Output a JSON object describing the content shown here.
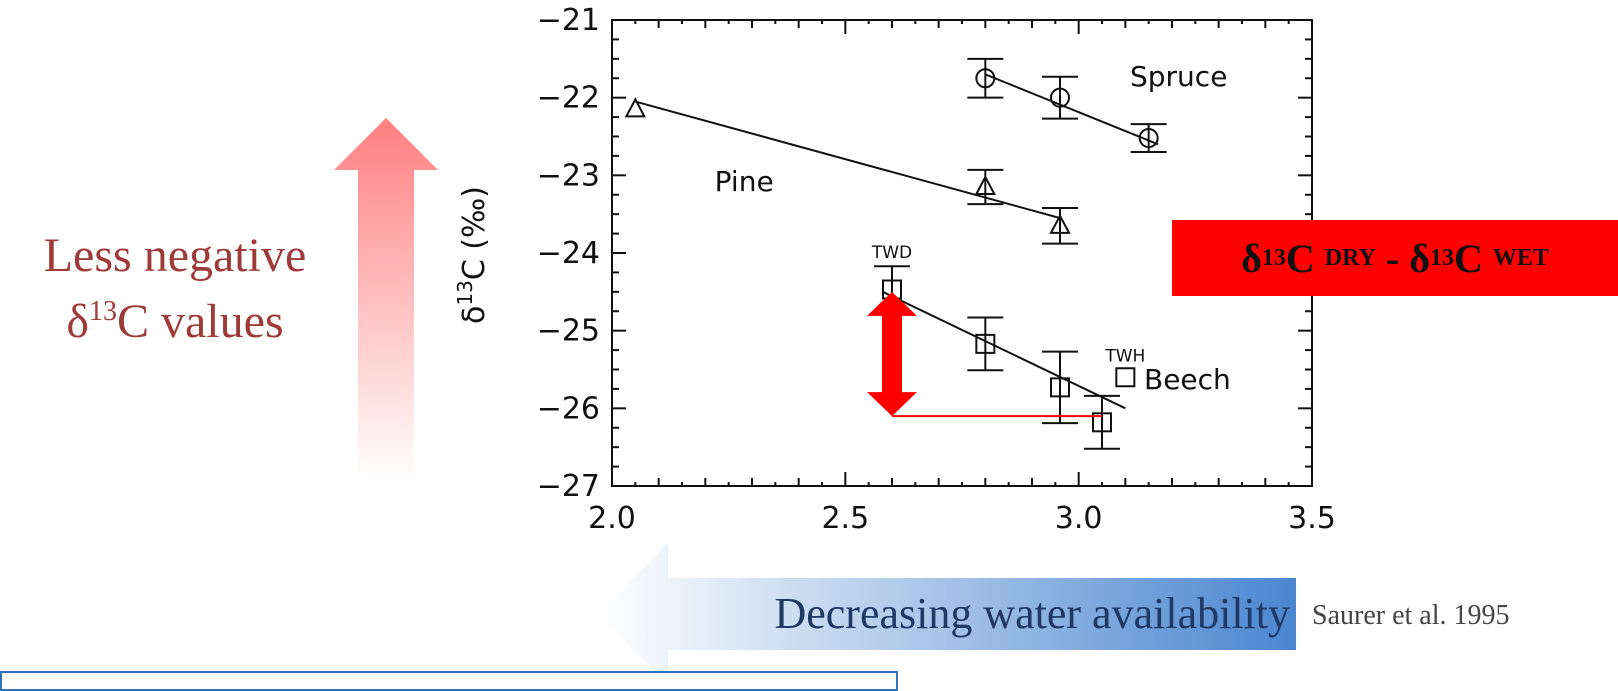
{
  "left_annotation": {
    "line1": "Less negative",
    "line2_symbol": "δ",
    "line2_sup": "13",
    "line2_rest": "C values"
  },
  "delta_box": {
    "sym1": "δ",
    "sup1": "13",
    "c1": "C",
    "sub1": "DRY",
    "minus": "-",
    "sym2": "δ",
    "sup2": "13",
    "c2": "C",
    "sub2": "WET"
  },
  "bottom_annotation": "Decreasing water availability",
  "citation": "Saurer et al. 1995",
  "colors": {
    "up_arrow": "#ff7f7f",
    "left_arrow": "#4a86d0",
    "red_marker": "#ff0000",
    "box_border": "#2e75b6"
  },
  "chart_data": {
    "type": "scatter",
    "ylabel": {
      "symbol": "δ",
      "sup": "13",
      "rest": "C  (‰)"
    },
    "xlim": [
      2.0,
      3.5
    ],
    "ylim": [
      -27,
      -21
    ],
    "x_ticks": [
      "2.0",
      "2.5",
      "3.0",
      "3.5"
    ],
    "y_ticks": [
      "−21",
      "−22",
      "−23",
      "−24",
      "−25",
      "−26",
      "−27"
    ],
    "series": [
      {
        "name": "Spruce",
        "marker": "circle",
        "points": [
          {
            "x": 2.8,
            "y": -21.75,
            "err": 0.25
          },
          {
            "x": 2.96,
            "y": -22.0,
            "err": 0.27
          },
          {
            "x": 3.15,
            "y": -22.52,
            "err": 0.18
          }
        ],
        "fit": [
          [
            2.8,
            -21.7
          ],
          [
            3.17,
            -22.6
          ]
        ],
        "label_pos": [
          3.11,
          -21.85
        ]
      },
      {
        "name": "Pine",
        "marker": "triangle",
        "points": [
          {
            "x": 2.05,
            "y": -22.15,
            "err": 0
          },
          {
            "x": 2.8,
            "y": -23.15,
            "err": 0.22
          },
          {
            "x": 2.96,
            "y": -23.65,
            "err": 0.23
          }
        ],
        "fit": [
          [
            2.05,
            -22.05
          ],
          [
            2.96,
            -23.55
          ]
        ],
        "label_pos": [
          2.22,
          -23.2
        ]
      },
      {
        "name": "Beech",
        "marker": "square",
        "points": [
          {
            "x": 2.6,
            "y": -24.47,
            "err": 0.3,
            "tag": "TWD"
          },
          {
            "x": 2.8,
            "y": -25.17,
            "err": 0.34
          },
          {
            "x": 2.96,
            "y": -25.73,
            "err": 0.46
          },
          {
            "x": 3.05,
            "y": -26.18,
            "err": 0.34
          },
          {
            "x": 3.1,
            "y": -25.6,
            "err": 0,
            "tag": "TWH"
          }
        ],
        "fit": [
          [
            2.58,
            -24.5
          ],
          [
            3.1,
            -26.0
          ]
        ],
        "label_pos": [
          3.14,
          -25.75
        ]
      }
    ],
    "difference_marker": {
      "x": 2.6,
      "from": -24.5,
      "to": -26.1,
      "ref_line_to_x": 3.05
    }
  }
}
